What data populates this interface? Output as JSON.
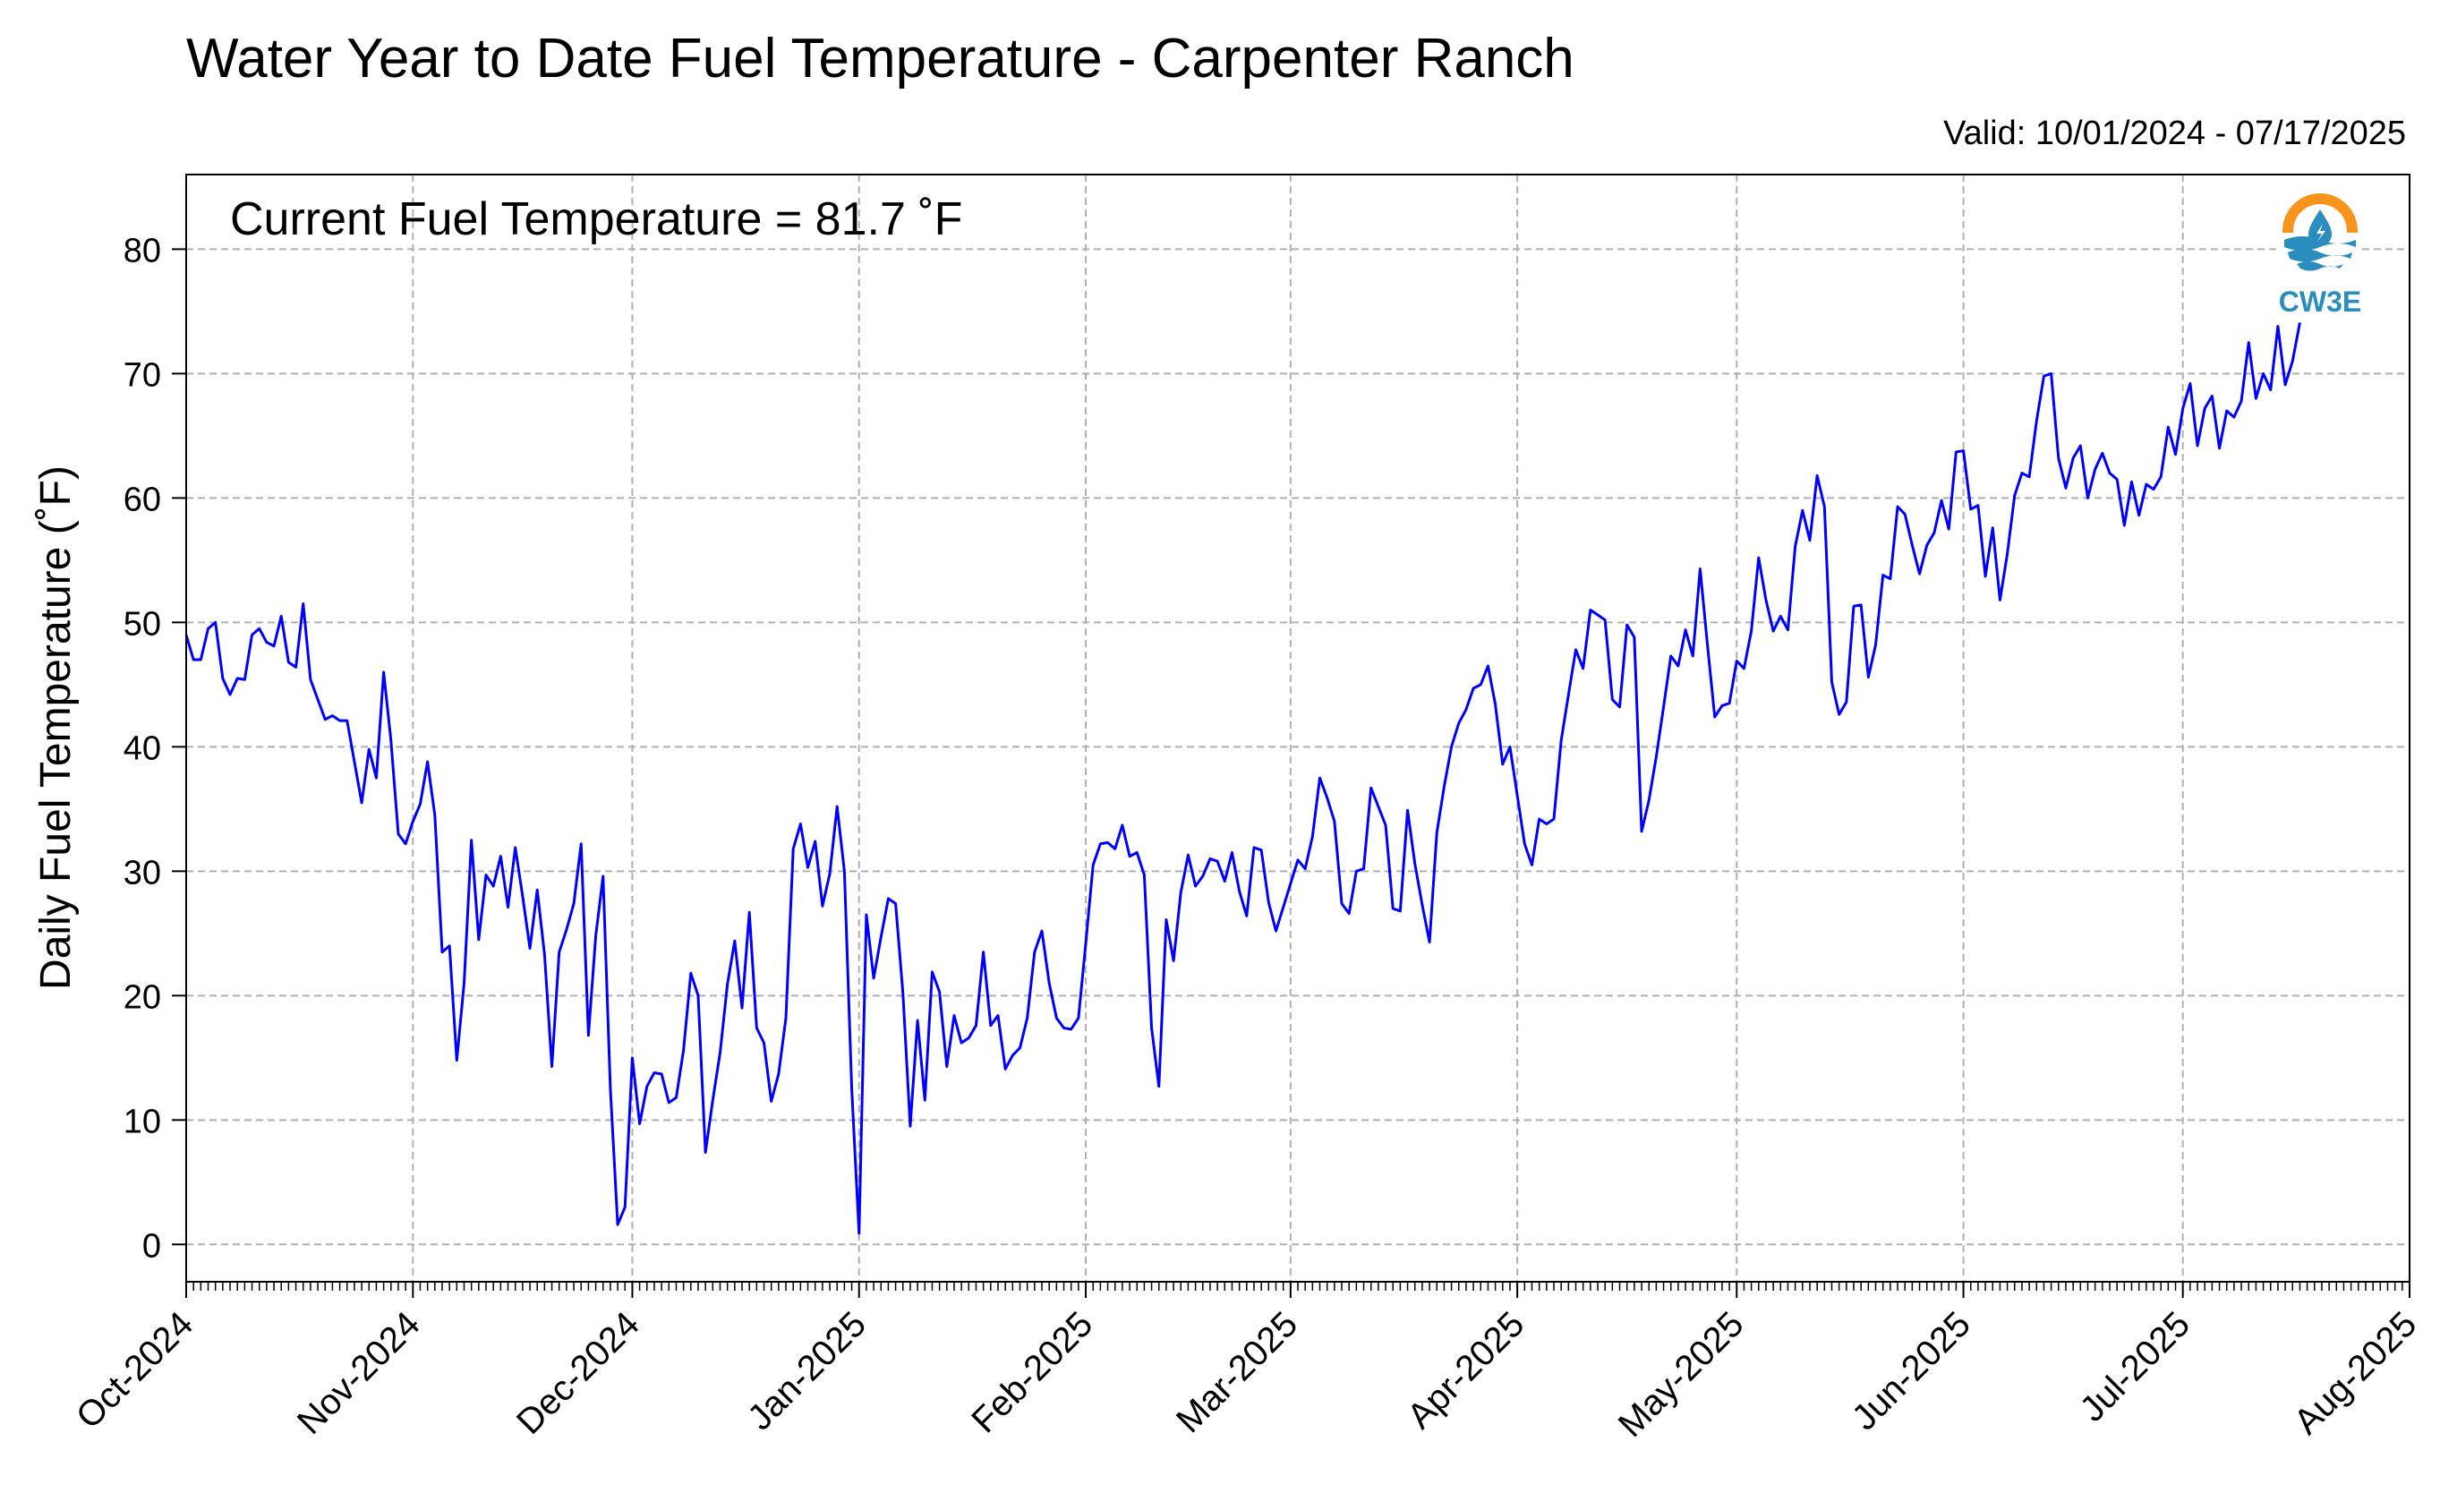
{
  "header": {
    "title": "Water Year to Date Fuel Temperature - Carpenter Ranch",
    "valid_range": "Valid: 10/01/2024 - 07/17/2025",
    "current_annotation": "Current Fuel Temperature = 81.7 ˚F"
  },
  "logo": {
    "text": "CW3E",
    "icon": "water-drop-logo-icon",
    "colors": {
      "ring": "#F7941D",
      "waves": "#2B8CBE"
    }
  },
  "chart_data": {
    "type": "line",
    "title": "Water Year to Date Fuel Temperature - Carpenter Ranch",
    "xlabel": "",
    "ylabel": "Daily Fuel Temperature (˚F)",
    "x_start": "2024-10-01",
    "x_end": "2025-07-17",
    "xlim": [
      "2024-10-01",
      "2025-08-01"
    ],
    "ylim": [
      -3,
      86
    ],
    "yticks": [
      0,
      10,
      20,
      30,
      40,
      50,
      60,
      70,
      80
    ],
    "xticks": [
      {
        "date": "2024-10-01",
        "label": "Oct-2024"
      },
      {
        "date": "2024-11-01",
        "label": "Nov-2024"
      },
      {
        "date": "2024-12-01",
        "label": "Dec-2024"
      },
      {
        "date": "2025-01-01",
        "label": "Jan-2025"
      },
      {
        "date": "2025-02-01",
        "label": "Feb-2025"
      },
      {
        "date": "2025-03-01",
        "label": "Mar-2025"
      },
      {
        "date": "2025-04-01",
        "label": "Apr-2025"
      },
      {
        "date": "2025-05-01",
        "label": "May-2025"
      },
      {
        "date": "2025-06-01",
        "label": "Jun-2025"
      },
      {
        "date": "2025-07-01",
        "label": "Jul-2025"
      },
      {
        "date": "2025-08-01",
        "label": "Aug-2025"
      }
    ],
    "grid": true,
    "line_color": "#0000FF",
    "values": [
      49,
      47,
      47,
      49.5,
      50,
      45.5,
      44.2,
      45.5,
      45.4,
      49,
      49.5,
      48.4,
      48.1,
      50.5,
      46.8,
      46.4,
      51.5,
      45.4,
      43.8,
      42.2,
      42.5,
      42.1,
      42.1,
      38.8,
      35.5,
      39.8,
      37.5,
      46,
      40.5,
      33,
      32.2,
      34,
      35.4,
      38.8,
      34.5,
      23.5,
      24,
      14.8,
      21,
      32.5,
      24.5,
      29.7,
      28.8,
      31.2,
      27.1,
      31.9,
      28,
      23.8,
      28.5,
      23.3,
      14.3,
      23.5,
      25.3,
      27.4,
      32.2,
      16.8,
      24.8,
      29.6,
      12.5,
      1.6,
      3,
      15,
      9.7,
      12.7,
      13.8,
      13.7,
      11.4,
      11.8,
      15.6,
      21.8,
      20,
      7.4,
      11.6,
      15.4,
      20.9,
      24.4,
      19,
      26.7,
      17.4,
      16.2,
      11.5,
      13.7,
      18.2,
      31.8,
      33.8,
      30.3,
      32.4,
      27.2,
      29.8,
      35.2,
      30,
      12.5,
      0.9,
      26.5,
      21.4,
      24.7,
      27.8,
      27.4,
      20.2,
      9.5,
      18,
      11.6,
      21.9,
      20.3,
      14.3,
      18.4,
      16.2,
      16.6,
      17.6,
      23.5,
      17.6,
      18.4,
      14.1,
      15.2,
      15.8,
      18.2,
      23.5,
      25.2,
      21,
      18.2,
      17.4,
      17.3,
      18.2,
      24.2,
      30.5,
      32.2,
      32.3,
      31.8,
      33.7,
      31.2,
      31.5,
      29.7,
      17.4,
      12.7,
      26.1,
      22.8,
      28.3,
      31.3,
      28.8,
      29.6,
      31,
      30.8,
      29.2,
      31.5,
      28.4,
      26.4,
      31.9,
      31.7,
      27.5,
      25.2,
      27.1,
      29,
      30.9,
      30.2,
      32.8,
      37.5,
      35.9,
      34,
      27.4,
      26.6,
      30,
      30.2,
      36.7,
      35.2,
      33.7,
      27,
      26.8,
      34.9,
      30.6,
      27.3,
      24.3,
      33.1,
      36.8,
      40,
      41.9,
      43,
      44.7,
      45,
      46.5,
      43.4,
      38.6,
      40,
      36.1,
      32.2,
      30.5,
      34.2,
      33.8,
      34.2,
      40.5,
      44.2,
      47.8,
      46.3,
      51,
      50.6,
      50.2,
      43.8,
      43.2,
      49.8,
      48.8,
      33.2,
      35.7,
      39.2,
      43.2,
      47.3,
      46.5,
      49.4,
      47.3,
      54.3,
      48.2,
      42.4,
      43.3,
      43.5,
      46.9,
      46.3,
      49.3,
      55.2,
      51.8,
      49.3,
      50.5,
      49.4,
      56.1,
      59,
      56.6,
      61.8,
      59.3,
      45.2,
      42.6,
      43.6,
      51.3,
      51.4,
      45.6,
      48.2,
      53.8,
      53.5,
      59.3,
      58.7,
      56.2,
      53.9,
      56.2,
      57.2,
      59.8,
      57.5,
      63.7,
      63.8,
      59.1,
      59.4,
      53.7,
      57.6,
      51.8,
      55.5,
      60.2,
      62,
      61.7,
      66.2,
      69.8,
      70,
      63.2,
      60.8,
      63.2,
      64.2,
      60,
      62.3,
      63.6,
      62,
      61.5,
      57.8,
      61.3,
      58.6,
      61.1,
      60.7,
      61.7,
      65.7,
      63.5,
      67.2,
      69.2,
      64.2,
      67.2,
      68.2,
      64,
      67,
      66.5,
      67.8,
      72.5,
      68,
      70,
      68.7,
      73.8,
      69.1,
      71,
      74.1
    ]
  }
}
